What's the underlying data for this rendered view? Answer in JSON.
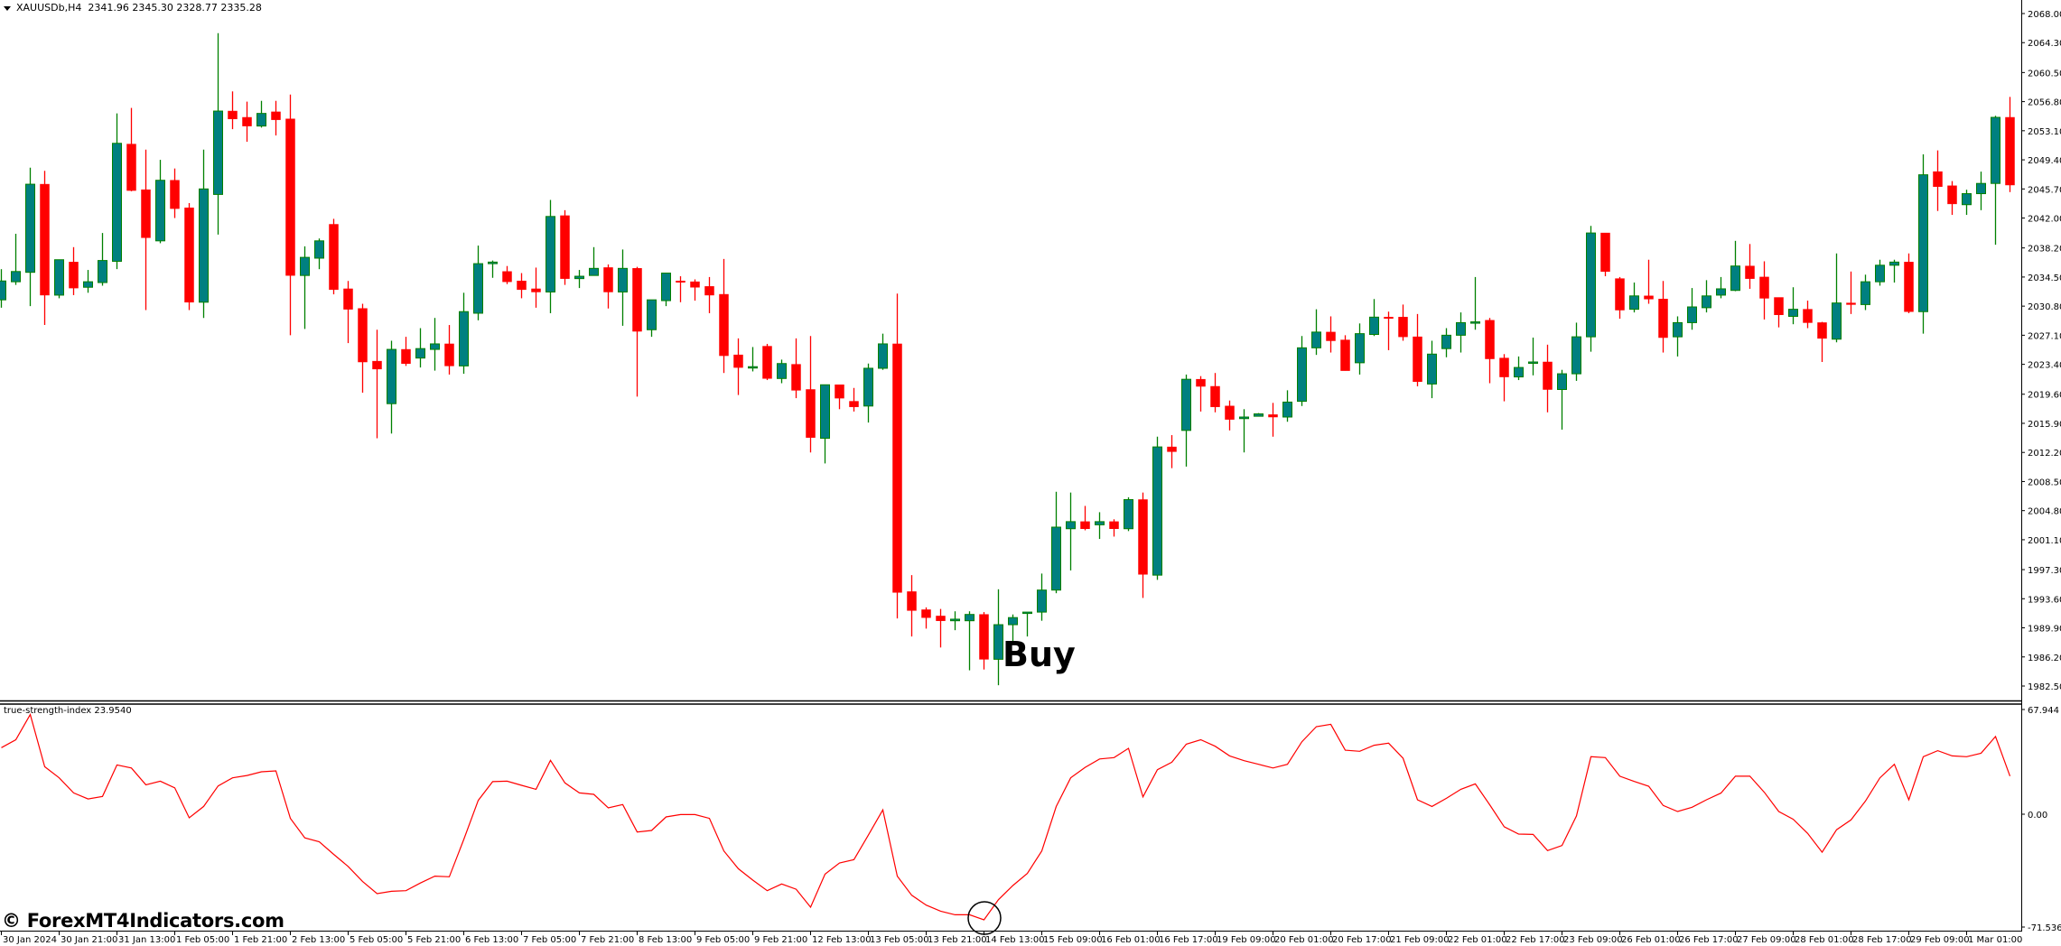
{
  "header": {
    "symbol": "XAUUSDb,H4",
    "values": "2341.96 2345.30 2328.77 2335.28",
    "menu_icon": "triangle-down-icon"
  },
  "price_axis": {
    "labels": [
      "2068.00",
      "2064.30",
      "2060.50",
      "2056.80",
      "2053.10",
      "2049.40",
      "2045.70",
      "2042.00",
      "2038.20",
      "2034.50",
      "2030.80",
      "2027.10",
      "2023.40",
      "2019.60",
      "2015.90",
      "2012.20",
      "2008.50",
      "2004.80",
      "2001.10",
      "1997.30",
      "1993.60",
      "1989.90",
      "1986.20",
      "1982.50"
    ]
  },
  "time_axis": {
    "labels": [
      "30 Jan 2024",
      "30 Jan 21:00",
      "31 Jan 13:00",
      "1 Feb 05:00",
      "1 Feb 21:00",
      "2 Feb 13:00",
      "5 Feb 05:00",
      "5 Feb 21:00",
      "6 Feb 13:00",
      "7 Feb 05:00",
      "7 Feb 21:00",
      "8 Feb 13:00",
      "9 Feb 05:00",
      "9 Feb 21:00",
      "12 Feb 13:00",
      "13 Feb 05:00",
      "13 Feb 21:00",
      "14 Feb 13:00",
      "15 Feb 09:00",
      "16 Feb 01:00",
      "16 Feb 17:00",
      "19 Feb 09:00",
      "20 Feb 01:00",
      "20 Feb 17:00",
      "21 Feb 09:00",
      "22 Feb 01:00",
      "22 Feb 17:00",
      "23 Feb 09:00",
      "26 Feb 01:00",
      "26 Feb 17:00",
      "27 Feb 09:00",
      "28 Feb 01:00",
      "28 Feb 17:00",
      "29 Feb 09:00",
      "1 Mar 01:00"
    ]
  },
  "indicator": {
    "label": "true-strength-index 23.9540",
    "axis_labels": [
      "67.944",
      "0.00",
      "-71.5362"
    ]
  },
  "annotation": {
    "buy_text": "Buy",
    "buy_index": 68
  },
  "watermark": "© ForexMT4Indicators.com",
  "colors": {
    "bull_fill": "#008080",
    "bull_edge": "#008000",
    "bear": "#ff0000",
    "tsi_line": "#ff0000",
    "axis": "#000000"
  },
  "chart_data": [
    {
      "type": "candlestick",
      "title": "XAUUSDb,H4",
      "ylim": [
        1982.5,
        2068.0
      ],
      "candle_format": [
        "open",
        "high",
        "low",
        "close"
      ],
      "candles": [
        [
          2031.6,
          2035.5,
          2030.6,
          2034.0
        ],
        [
          2033.9,
          2040.0,
          2033.5,
          2035.2
        ],
        [
          2035.1,
          2048.4,
          2030.8,
          2046.3
        ],
        [
          2046.3,
          2048.0,
          2028.4,
          2032.2
        ],
        [
          2032.2,
          2036.7,
          2031.8,
          2036.7
        ],
        [
          2036.4,
          2038.3,
          2032.2,
          2033.1
        ],
        [
          2033.2,
          2035.4,
          2032.5,
          2033.9
        ],
        [
          2033.8,
          2040.1,
          2033.4,
          2036.6
        ],
        [
          2036.5,
          2055.3,
          2035.5,
          2051.5
        ],
        [
          2051.4,
          2056.0,
          2045.4,
          2045.5
        ],
        [
          2045.6,
          2050.7,
          2030.3,
          2039.5
        ],
        [
          2039.1,
          2049.4,
          2038.8,
          2046.8
        ],
        [
          2046.8,
          2048.3,
          2042.0,
          2043.2
        ],
        [
          2043.3,
          2043.9,
          2030.3,
          2031.3
        ],
        [
          2031.3,
          2050.7,
          2029.3,
          2045.7
        ],
        [
          2045.0,
          2065.5,
          2039.9,
          2055.6
        ],
        [
          2055.6,
          2058.1,
          2053.3,
          2054.6
        ],
        [
          2054.8,
          2056.8,
          2051.7,
          2053.7
        ],
        [
          2053.7,
          2056.9,
          2053.5,
          2055.3
        ],
        [
          2055.5,
          2056.9,
          2052.5,
          2054.5
        ],
        [
          2054.6,
          2057.7,
          2027.1,
          2034.7
        ],
        [
          2034.7,
          2038.4,
          2027.9,
          2037.0
        ],
        [
          2036.9,
          2039.4,
          2035.5,
          2039.1
        ],
        [
          2041.2,
          2041.9,
          2032.3,
          2032.9
        ],
        [
          2033.0,
          2034.0,
          2026.1,
          2030.4
        ],
        [
          2030.5,
          2031.1,
          2019.8,
          2023.7
        ],
        [
          2023.8,
          2027.8,
          2014.0,
          2022.8
        ],
        [
          2018.4,
          2026.4,
          2014.6,
          2025.3
        ],
        [
          2025.3,
          2026.9,
          2023.2,
          2023.5
        ],
        [
          2024.2,
          2028.0,
          2023.0,
          2025.4
        ],
        [
          2025.3,
          2029.3,
          2022.6,
          2026.0
        ],
        [
          2026.0,
          2028.4,
          2022.1,
          2023.2
        ],
        [
          2023.2,
          2032.5,
          2022.2,
          2030.1
        ],
        [
          2029.9,
          2038.5,
          2029.0,
          2036.2
        ],
        [
          2036.2,
          2036.6,
          2034.4,
          2036.4
        ],
        [
          2035.2,
          2035.9,
          2033.6,
          2033.9
        ],
        [
          2034.0,
          2035.0,
          2031.8,
          2032.9
        ],
        [
          2033.0,
          2035.7,
          2030.6,
          2032.6
        ],
        [
          2032.6,
          2044.3,
          2029.9,
          2042.2
        ],
        [
          2042.3,
          2043.0,
          2033.5,
          2034.3
        ],
        [
          2034.3,
          2035.4,
          2033.1,
          2034.6
        ],
        [
          2034.7,
          2038.3,
          2034.7,
          2035.6
        ],
        [
          2035.7,
          2036.1,
          2030.5,
          2032.6
        ],
        [
          2032.6,
          2038.0,
          2028.3,
          2035.6
        ],
        [
          2035.6,
          2035.8,
          2019.3,
          2027.6
        ],
        [
          2027.8,
          2031.6,
          2026.9,
          2031.6
        ],
        [
          2031.5,
          2035.0,
          2030.8,
          2035.0
        ],
        [
          2034.0,
          2034.6,
          2031.3,
          2033.9
        ],
        [
          2033.9,
          2034.2,
          2031.5,
          2033.2
        ],
        [
          2033.3,
          2034.5,
          2029.9,
          2032.2
        ],
        [
          2032.3,
          2036.8,
          2022.3,
          2024.5
        ],
        [
          2024.6,
          2026.7,
          2019.5,
          2023.0
        ],
        [
          2023.0,
          2025.6,
          2022.5,
          2023.1
        ],
        [
          2025.7,
          2026.0,
          2021.4,
          2021.6
        ],
        [
          2021.6,
          2024.0,
          2021.0,
          2023.5
        ],
        [
          2023.4,
          2026.7,
          2019.1,
          2020.1
        ],
        [
          2020.2,
          2027.0,
          2012.2,
          2014.1
        ],
        [
          2014.0,
          2020.8,
          2010.8,
          2020.8
        ],
        [
          2020.8,
          2020.8,
          2017.7,
          2019.1
        ],
        [
          2018.7,
          2020.4,
          2017.4,
          2018.0
        ],
        [
          2018.1,
          2023.5,
          2016.0,
          2022.9
        ],
        [
          2022.9,
          2027.3,
          2022.7,
          2026.0
        ],
        [
          2026.0,
          2032.4,
          1991.1,
          1994.4
        ],
        [
          1994.5,
          1996.6,
          1988.8,
          1992.1
        ],
        [
          1992.2,
          1992.5,
          1989.8,
          1991.2
        ],
        [
          1991.4,
          1992.3,
          1987.4,
          1990.8
        ],
        [
          1990.8,
          1992.0,
          1989.6,
          1991.0
        ],
        [
          1990.8,
          1992.0,
          1984.5,
          1991.6
        ],
        [
          1991.6,
          1991.9,
          1984.6,
          1985.9
        ],
        [
          1985.9,
          1994.8,
          1982.6,
          1990.3
        ],
        [
          1990.3,
          1991.6,
          1988.2,
          1991.2
        ],
        [
          1991.8,
          1991.9,
          1988.8,
          1991.9
        ],
        [
          1991.9,
          1996.8,
          1990.8,
          1994.7
        ],
        [
          1994.7,
          2007.2,
          1994.3,
          2002.7
        ],
        [
          2002.5,
          2007.1,
          1997.2,
          2003.4
        ],
        [
          2003.4,
          2005.4,
          2002.3,
          2002.5
        ],
        [
          2003.0,
          2004.6,
          2001.2,
          2003.4
        ],
        [
          2003.4,
          2003.7,
          2001.5,
          2002.5
        ],
        [
          2002.5,
          2006.5,
          2002.2,
          2006.2
        ],
        [
          2006.2,
          2007.1,
          1993.7,
          1996.7
        ],
        [
          1996.6,
          2014.2,
          1996.0,
          2012.9
        ],
        [
          2012.9,
          2014.4,
          2010.2,
          2012.3
        ],
        [
          2015.0,
          2022.1,
          2010.4,
          2021.5
        ],
        [
          2021.5,
          2021.9,
          2017.4,
          2020.6
        ],
        [
          2020.6,
          2022.3,
          2017.3,
          2018.0
        ],
        [
          2018.1,
          2018.8,
          2015.0,
          2016.4
        ],
        [
          2016.5,
          2017.7,
          2012.2,
          2016.7
        ],
        [
          2016.8,
          2017.2,
          2016.8,
          2017.1
        ],
        [
          2017.0,
          2018.5,
          2014.2,
          2016.7
        ],
        [
          2016.7,
          2020.1,
          2016.1,
          2018.6
        ],
        [
          2018.7,
          2027.0,
          2018.1,
          2025.5
        ],
        [
          2025.5,
          2030.4,
          2024.6,
          2027.5
        ],
        [
          2027.5,
          2029.5,
          2024.9,
          2026.4
        ],
        [
          2026.5,
          2027.1,
          2022.6,
          2022.6
        ],
        [
          2023.6,
          2028.6,
          2022.1,
          2027.3
        ],
        [
          2027.2,
          2031.7,
          2027.0,
          2029.4
        ],
        [
          2029.4,
          2030.1,
          2025.2,
          2029.3
        ],
        [
          2029.4,
          2031.0,
          2026.4,
          2026.9
        ],
        [
          2026.9,
          2029.8,
          2020.6,
          2021.2
        ],
        [
          2020.9,
          2026.4,
          2019.1,
          2024.7
        ],
        [
          2025.4,
          2028.0,
          2024.3,
          2027.1
        ],
        [
          2027.1,
          2030.0,
          2024.9,
          2028.7
        ],
        [
          2028.7,
          2034.5,
          2027.8,
          2028.8
        ],
        [
          2029.0,
          2029.3,
          2021.0,
          2024.1
        ],
        [
          2024.2,
          2024.7,
          2018.7,
          2021.8
        ],
        [
          2021.8,
          2024.4,
          2021.4,
          2023.0
        ],
        [
          2023.6,
          2026.8,
          2022.0,
          2023.7
        ],
        [
          2023.7,
          2025.9,
          2017.3,
          2020.2
        ],
        [
          2020.2,
          2022.7,
          2015.1,
          2022.2
        ],
        [
          2022.2,
          2028.7,
          2021.3,
          2026.9
        ],
        [
          2026.9,
          2041.0,
          2025.0,
          2040.1
        ],
        [
          2040.1,
          2040.1,
          2034.6,
          2035.2
        ],
        [
          2034.3,
          2034.5,
          2029.2,
          2030.3
        ],
        [
          2030.4,
          2033.8,
          2030.0,
          2032.1
        ],
        [
          2032.1,
          2036.7,
          2031.1,
          2031.7
        ],
        [
          2031.7,
          2034.0,
          2024.9,
          2026.8
        ],
        [
          2026.9,
          2029.5,
          2024.4,
          2028.7
        ],
        [
          2028.7,
          2033.1,
          2027.8,
          2030.7
        ],
        [
          2030.6,
          2034.1,
          2030.0,
          2032.1
        ],
        [
          2032.2,
          2034.5,
          2031.8,
          2033.0
        ],
        [
          2032.8,
          2039.1,
          2032.7,
          2035.9
        ],
        [
          2035.9,
          2038.7,
          2033.0,
          2034.3
        ],
        [
          2034.5,
          2036.5,
          2029.1,
          2031.8
        ],
        [
          2031.9,
          2031.9,
          2028.1,
          2029.7
        ],
        [
          2029.5,
          2033.2,
          2028.5,
          2030.4
        ],
        [
          2030.4,
          2031.5,
          2028.0,
          2028.7
        ],
        [
          2028.7,
          2028.8,
          2023.7,
          2026.7
        ],
        [
          2026.6,
          2037.5,
          2026.2,
          2031.2
        ],
        [
          2031.2,
          2035.2,
          2029.8,
          2031.0
        ],
        [
          2031.0,
          2034.8,
          2030.3,
          2033.9
        ],
        [
          2033.9,
          2036.7,
          2033.4,
          2036.0
        ],
        [
          2036.0,
          2036.7,
          2033.8,
          2036.4
        ],
        [
          2036.4,
          2037.5,
          2029.9,
          2030.1
        ],
        [
          2030.1,
          2050.1,
          2027.3,
          2047.5
        ],
        [
          2047.9,
          2050.6,
          2042.9,
          2046.0
        ],
        [
          2046.1,
          2046.7,
          2042.4,
          2043.8
        ],
        [
          2043.7,
          2045.6,
          2042.4,
          2045.1
        ],
        [
          2045.1,
          2047.9,
          2043.0,
          2046.4
        ],
        [
          2046.4,
          2055.0,
          2038.6,
          2054.8
        ],
        [
          2054.8,
          2057.4,
          2045.3,
          2046.2
        ]
      ]
    },
    {
      "type": "line",
      "series": [
        {
          "name": "true-strength-index"
        }
      ],
      "ylim": [
        -71.5362,
        67.944
      ],
      "values": [
        41.9,
        46.9,
        62.7,
        29.9,
        22.9,
        13.4,
        9.6,
        11.2,
        31.0,
        29.1,
        18.5,
        20.8,
        16.6,
        -2.3,
        4.9,
        17.8,
        22.9,
        24.4,
        26.7,
        27.3,
        -2.6,
        -14.9,
        -17.4,
        -25.3,
        -32.9,
        -42.4,
        -50.0,
        -48.5,
        -48.1,
        -43.3,
        -39.0,
        -39.4,
        -15.9,
        8.7,
        20.5,
        20.8,
        18.2,
        15.7,
        33.9,
        19.7,
        13.4,
        12.5,
        4.0,
        6.1,
        -11.2,
        -10.2,
        -1.7,
        -0.2,
        -0.2,
        -2.6,
        -23.1,
        -34.3,
        -41.5,
        -48.1,
        -43.9,
        -47.2,
        -58.5,
        -37.7,
        -30.7,
        -28.6,
        -13.1,
        2.7,
        -39.0,
        -51.0,
        -57.2,
        -61.0,
        -63.3,
        -63.3,
        -66.5,
        -53.8,
        -44.9,
        -37.3,
        -23.1,
        4.9,
        22.9,
        29.5,
        34.8,
        35.6,
        41.5,
        10.9,
        28.0,
        32.7,
        44.1,
        46.9,
        42.8,
        36.7,
        33.7,
        31.4,
        29.1,
        31.4,
        45.6,
        55.1,
        56.6,
        40.3,
        39.6,
        43.4,
        44.7,
        35.2,
        9.1,
        4.9,
        10.0,
        15.7,
        19.1,
        5.9,
        -7.9,
        -12.5,
        -12.7,
        -22.9,
        -19.7,
        -1.1,
        36.2,
        35.6,
        23.9,
        20.6,
        17.6,
        5.5,
        1.7,
        4.4,
        9.1,
        13.3,
        23.9,
        23.9,
        13.8,
        1.7,
        -3.2,
        -12.1,
        -23.9,
        -9.8,
        -3.6,
        8.3,
        22.9,
        31.4,
        9.1,
        36.2,
        40.0,
        36.7,
        36.2,
        38.4,
        48.9,
        23.954
      ]
    }
  ]
}
